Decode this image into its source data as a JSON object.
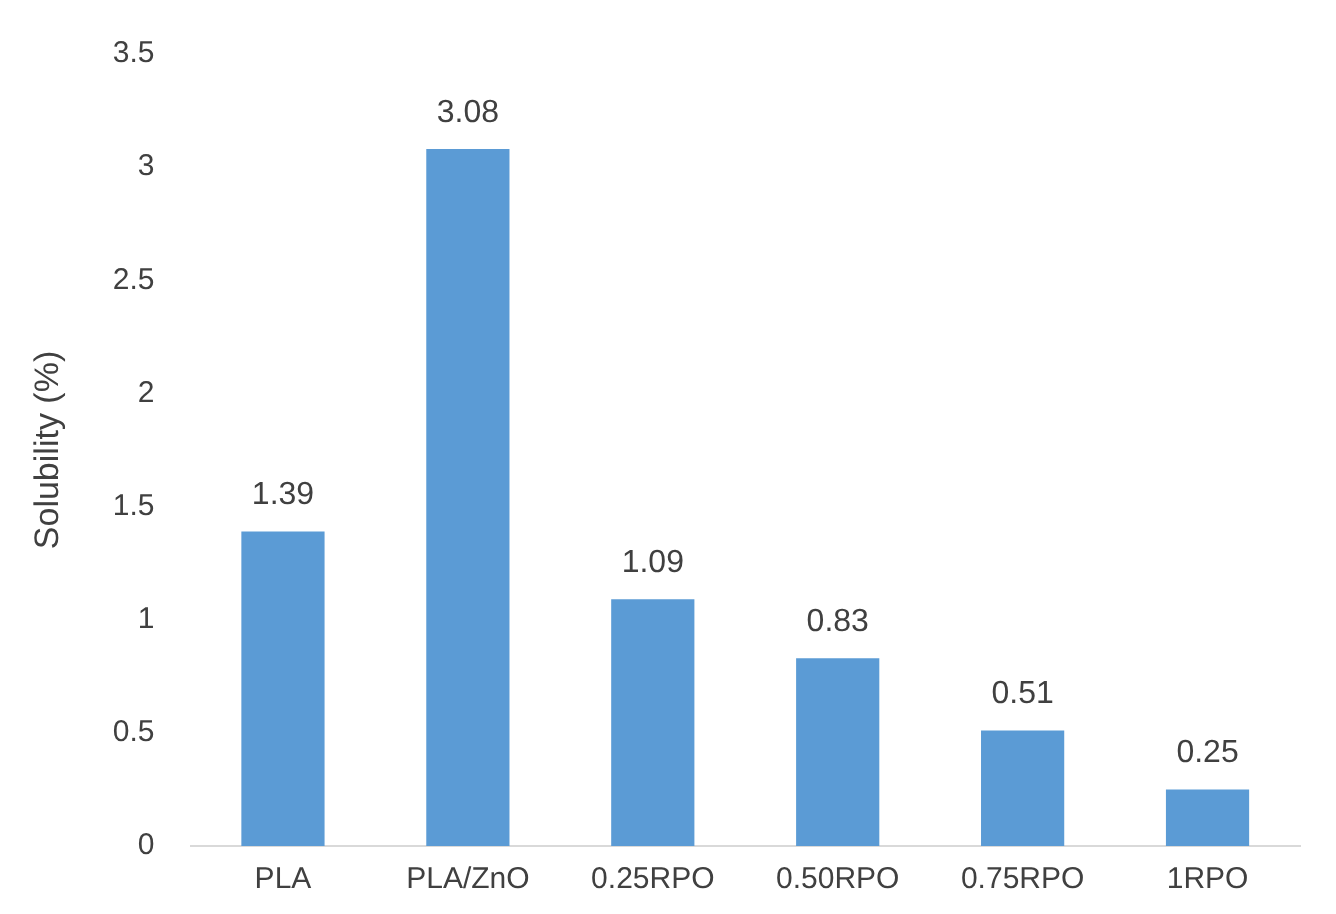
{
  "chart_data": {
    "type": "bar",
    "ylabel": "Solubility (%)",
    "categories": [
      "PLA",
      "PLA/ZnO",
      "0.25RPO",
      "0.50RPO",
      "0.75RPO",
      "1RPO"
    ],
    "values": [
      1.39,
      3.08,
      1.09,
      0.83,
      0.51,
      0.25
    ],
    "color": "#5b9bd5",
    "ylim": [
      0,
      3.5
    ],
    "yticks": [
      0,
      0.5,
      1,
      1.5,
      2,
      2.5,
      3,
      3.5
    ],
    "data_labels": true,
    "legend": false
  }
}
